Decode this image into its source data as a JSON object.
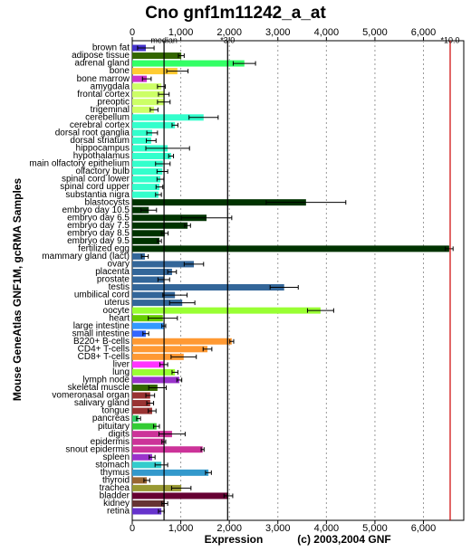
{
  "chart_data": {
    "type": "bar",
    "orientation": "horizontal",
    "title": "Cno gnf1m11242_a_at",
    "x_label": "Expression",
    "copyright": "(c) 2003,2004 GNF",
    "y_label": "Mouse GeneAtlas GNF1M, gcRMA Samples",
    "categories": [
      "brown fat",
      "adipose tissue",
      "adrenal gland",
      "bone",
      "bone marrow",
      "amygdala",
      "frontal cortex",
      "preoptic",
      "trigeminal",
      "cerebellum",
      "cerebral cortex",
      "dorsal root ganglia",
      "dorsal striatum",
      "hippocampus",
      "hypothalamus",
      "main olfactory epithelium",
      "olfactory bulb",
      "spinal cord lower",
      "spinal cord upper",
      "substantia nigra",
      "blastocysts",
      "embryo day 10.5",
      "embryo day 6.5",
      "embryo day 7.5",
      "embryo day 8.5",
      "embryo day 9.5",
      "fertilized egg",
      "mammary gland (lact)",
      "ovary",
      "placenta",
      "prostate",
      "testis",
      "umbilical cord",
      "uterus",
      "oocyte",
      "heart",
      "large intestine",
      "small intestine",
      "B220+ B-cells",
      "CD4+ T-cells",
      "CD8+ T-cells",
      "liver",
      "lung",
      "lymph node",
      "skeletal muscle",
      "vomeronasal organ",
      "salivary gland",
      "tongue",
      "pancreas",
      "pituitary",
      "digits",
      "epidermis",
      "snout epidermis",
      "spleen",
      "stomach",
      "thymus",
      "thyroid",
      "trachea",
      "bladder",
      "kidney",
      "retina"
    ],
    "values": [
      280,
      1010,
      2310,
      930,
      300,
      600,
      650,
      650,
      450,
      1470,
      880,
      410,
      390,
      730,
      800,
      630,
      620,
      580,
      560,
      540,
      3580,
      340,
      1530,
      1140,
      670,
      560,
      6530,
      260,
      1270,
      820,
      650,
      3130,
      880,
      1030,
      3880,
      630,
      650,
      280,
      2050,
      1550,
      1060,
      650,
      880,
      970,
      520,
      370,
      370,
      410,
      130,
      500,
      820,
      650,
      1450,
      410,
      600,
      1570,
      300,
      1010,
      1980,
      670,
      600
    ],
    "errors": [
      170,
      60,
      230,
      220,
      90,
      80,
      110,
      130,
      80,
      300,
      60,
      110,
      100,
      450,
      50,
      150,
      110,
      70,
      70,
      60,
      820,
      160,
      520,
      60,
      70,
      40,
      80,
      70,
      200,
      90,
      120,
      290,
      250,
      260,
      270,
      300,
      40,
      60,
      40,
      90,
      260,
      80,
      60,
      50,
      180,
      90,
      70,
      80,
      40,
      60,
      270,
      40,
      30,
      60,
      130,
      60,
      60,
      200,
      90,
      60,
      60
    ],
    "colors": [
      "#4433cc",
      "#336600",
      "#33ff66",
      "#ffcc33",
      "#cc33cc",
      "#ccff66",
      "#ccff66",
      "#ccff66",
      "#ccff66",
      "#33ffcc",
      "#33ffcc",
      "#33ffcc",
      "#33ffcc",
      "#33ffcc",
      "#33ffcc",
      "#33ffcc",
      "#33ffcc",
      "#33ffcc",
      "#33ffcc",
      "#33ffcc",
      "#003300",
      "#003300",
      "#003300",
      "#003300",
      "#003300",
      "#003300",
      "#003300",
      "#336699",
      "#336699",
      "#336699",
      "#336699",
      "#336699",
      "#336699",
      "#336699",
      "#99ff33",
      "#66cc00",
      "#3399ff",
      "#3366ff",
      "#ff9933",
      "#ff9933",
      "#ff9933",
      "#ff33ff",
      "#99ff33",
      "#9933cc",
      "#336600",
      "#993333",
      "#993333",
      "#993333",
      "#33cc66",
      "#33cc33",
      "#cc3399",
      "#cc3399",
      "#cc3399",
      "#9933cc",
      "#33cccc",
      "#3399cc",
      "#996633",
      "#999933",
      "#660033",
      "#663333",
      "#6633cc"
    ],
    "xlim": [
      0,
      6830
    ],
    "xticks": [
      0,
      {
        "value": 1000,
        "label": "1,000"
      },
      {
        "value": 2000,
        "label": "2,000"
      },
      {
        "value": 3000,
        "label": "3,000"
      },
      {
        "value": 4000,
        "label": "4,000"
      },
      {
        "value": 5000,
        "label": "5,000"
      },
      {
        "value": 6000,
        "label": "6,000"
      }
    ],
    "grid": true,
    "reference_lines": [
      {
        "label": "median",
        "value": 655,
        "color": "#000000"
      },
      {
        "label": "*3.0",
        "value": 1965,
        "color": "#000000"
      },
      {
        "label": "*10.0",
        "value": 6550,
        "color": "#cc0000"
      }
    ]
  }
}
